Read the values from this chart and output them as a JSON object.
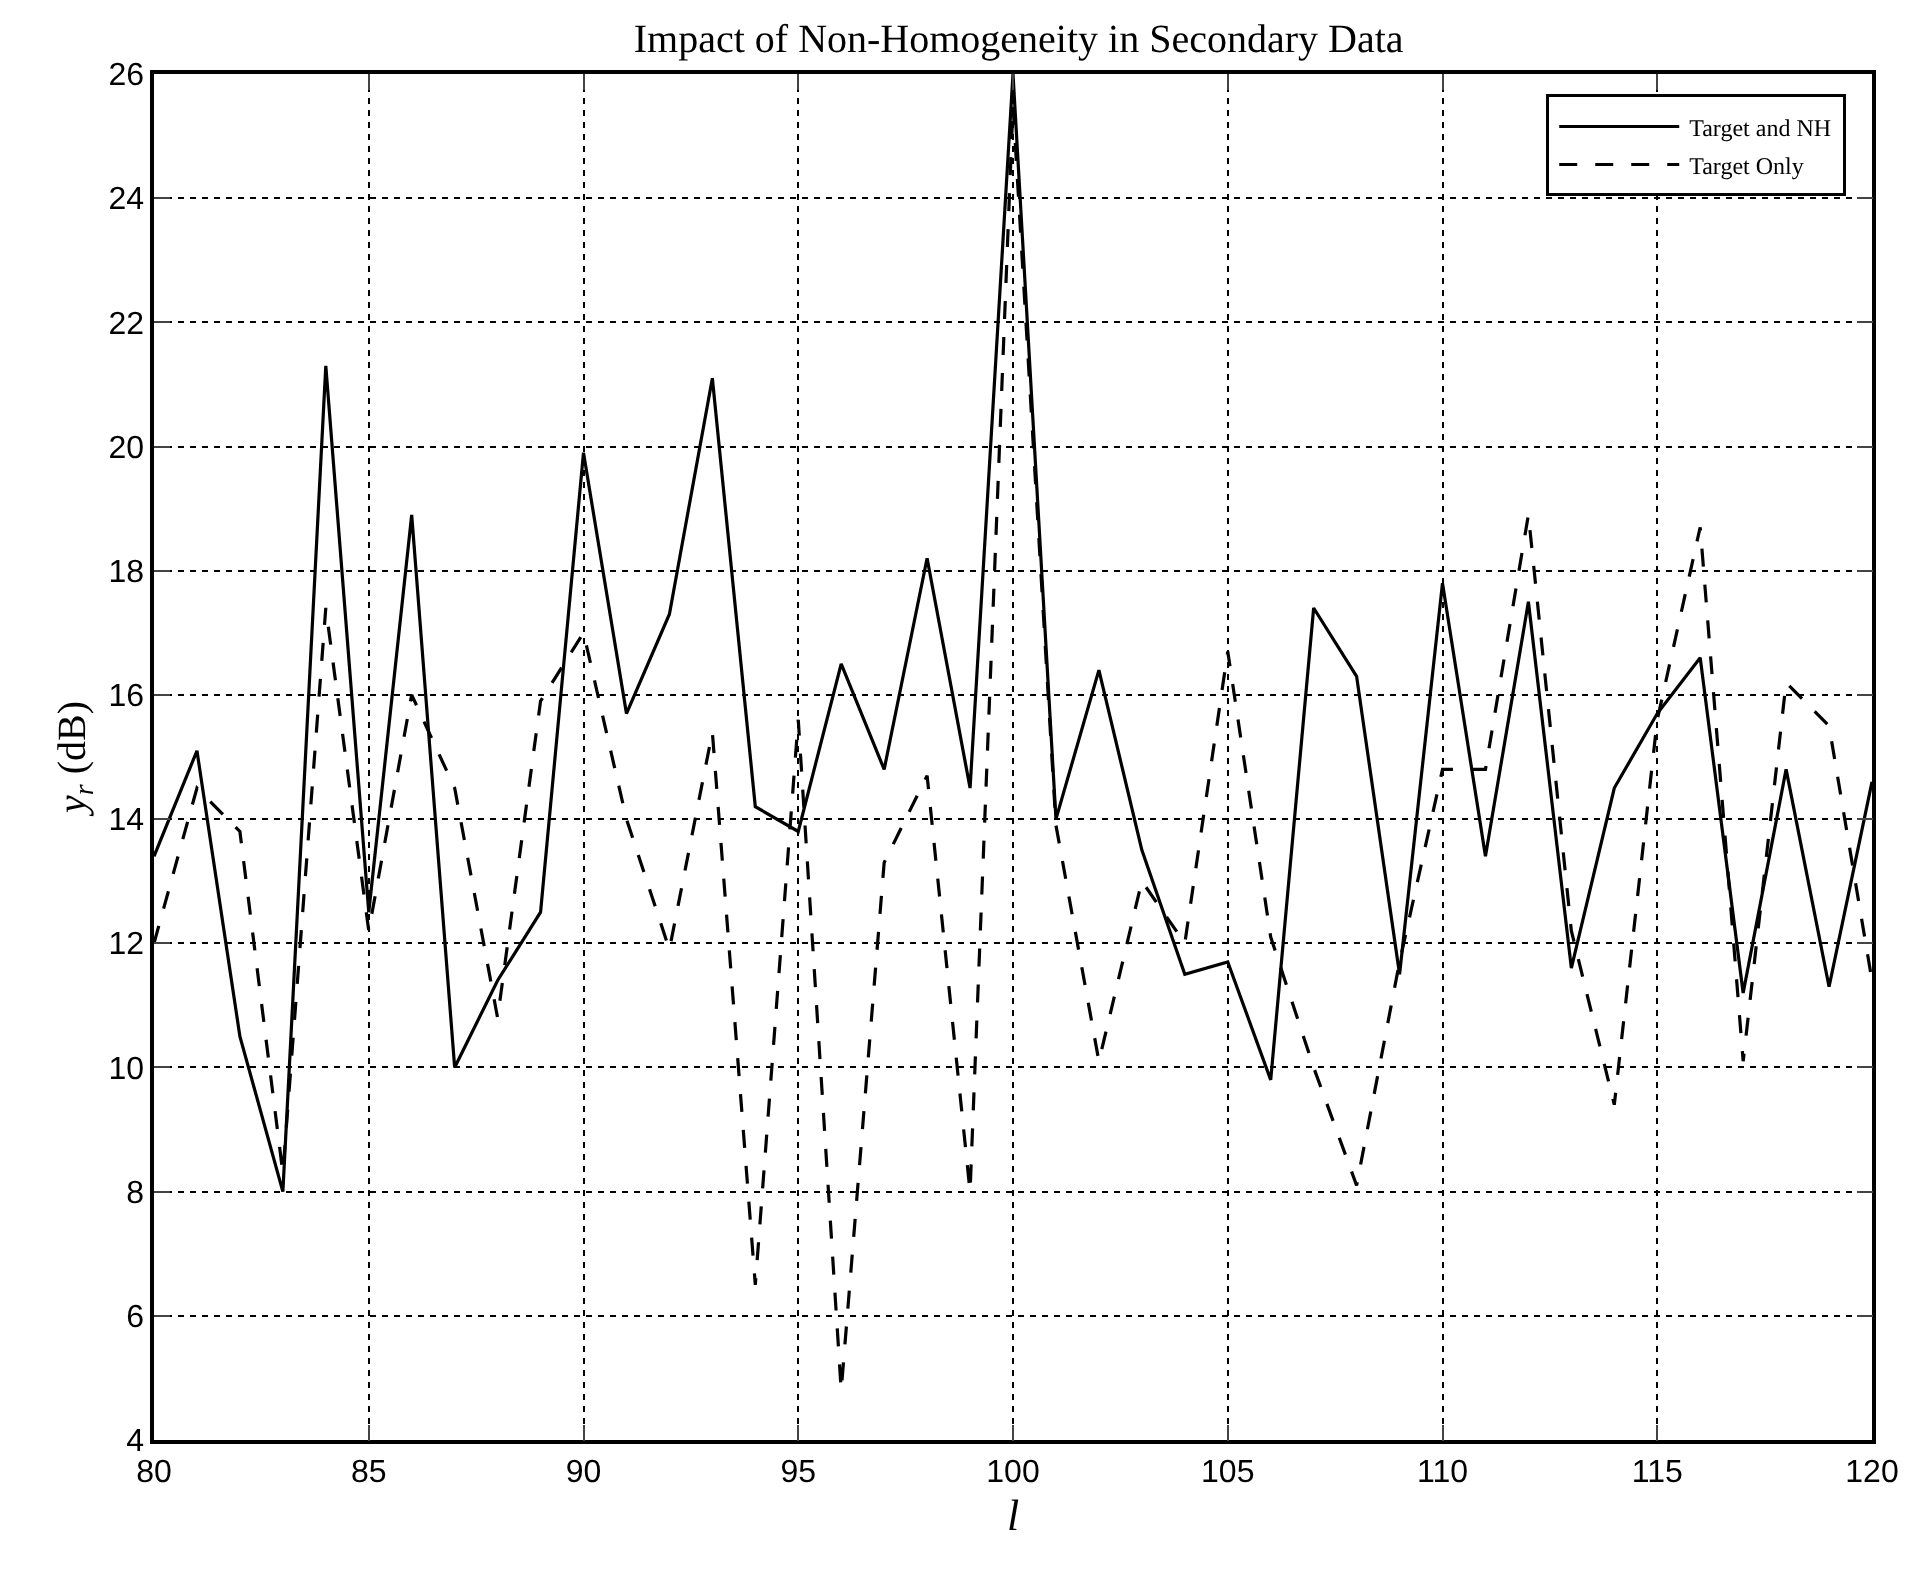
{
  "chart_data": {
    "type": "line",
    "title": "Impact of Non-Homogeneity in Secondary Data",
    "xlabel": "l",
    "ylabel": "y$_{r}$ (dB)",
    "x": [
      80,
      81,
      82,
      83,
      84,
      85,
      86,
      87,
      88,
      89,
      90,
      91,
      92,
      93,
      94,
      95,
      96,
      97,
      98,
      99,
      100,
      101,
      102,
      103,
      104,
      105,
      106,
      107,
      108,
      109,
      110,
      111,
      112,
      113,
      114,
      115,
      116,
      117,
      118,
      119,
      120
    ],
    "series": [
      {
        "name": "Target and NH",
        "color": "#000000",
        "line_style": "solid",
        "values": [
          13.4,
          15.1,
          10.5,
          8.0,
          21.3,
          12.5,
          18.9,
          10.0,
          11.4,
          12.5,
          19.9,
          15.7,
          17.3,
          21.1,
          14.2,
          13.8,
          16.5,
          14.8,
          18.2,
          14.5,
          26.0,
          14.0,
          16.4,
          13.5,
          11.5,
          11.7,
          9.8,
          17.4,
          16.3,
          11.5,
          17.8,
          13.4,
          17.5,
          11.6,
          14.5,
          15.7,
          16.6,
          11.2,
          14.8,
          11.3,
          14.6
        ]
      },
      {
        "name": "Target Only",
        "color": "#000000",
        "line_style": "dashed",
        "values": [
          12.0,
          14.5,
          13.8,
          8.3,
          17.4,
          12.2,
          16.0,
          14.5,
          10.8,
          15.9,
          17.0,
          14.0,
          11.9,
          15.4,
          6.5,
          15.6,
          4.8,
          13.3,
          14.7,
          8.0,
          25.5,
          13.9,
          10.1,
          13.0,
          12.0,
          16.7,
          12.1,
          10.0,
          8.1,
          11.7,
          14.8,
          14.8,
          18.9,
          12.2,
          9.4,
          15.6,
          18.7,
          10.1,
          16.2,
          15.5,
          11.4
        ]
      }
    ],
    "xlim": [
      80,
      120
    ],
    "xticks": [
      80,
      85,
      90,
      95,
      100,
      105,
      110,
      115,
      120
    ],
    "ylim": [
      4,
      26
    ],
    "yticks": [
      4,
      6,
      8,
      10,
      12,
      14,
      16,
      18,
      20,
      22,
      24,
      26
    ],
    "grid": true,
    "legend": "top right",
    "marker": "none"
  }
}
